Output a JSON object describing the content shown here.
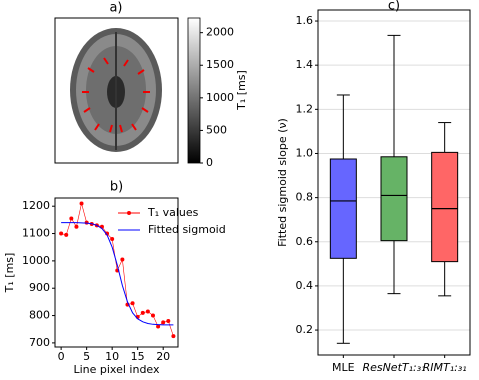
{
  "chart_data": [
    {
      "type": "image",
      "title": "a)",
      "colorbar_label": "T₁ [ms]",
      "clim": [
        0,
        2225
      ],
      "cticks": [
        0,
        500,
        1000,
        1500,
        2000
      ]
    },
    {
      "type": "line",
      "title": "b)",
      "x_label": "Line pixel index",
      "y_label": "T₁ [ms]",
      "x": [
        0,
        1,
        2,
        3,
        4,
        5,
        6,
        7,
        8,
        9,
        10,
        11,
        12,
        13,
        14,
        15,
        16,
        17,
        18,
        19,
        20,
        21,
        22
      ],
      "xlim": [
        -1.2,
        22.9
      ],
      "xticks": [
        0,
        5,
        10,
        15,
        20
      ],
      "ylim": [
        685,
        1230
      ],
      "yticks": [
        700,
        800,
        900,
        1000,
        1100,
        1200
      ],
      "legend": "upper right",
      "series": [
        {
          "name": "T₁ values",
          "color": "#ff0000",
          "marker": true,
          "values": [
            1100,
            1095,
            1155,
            1125,
            1210,
            1140,
            1135,
            1130,
            1125,
            1100,
            1080,
            965,
            1005,
            840,
            845,
            795,
            810,
            815,
            800,
            760,
            775,
            780,
            725
          ]
        },
        {
          "name": "Fitted sigmoid",
          "color": "#0000ff",
          "marker": false,
          "values": [
            1140,
            1140,
            1140,
            1140,
            1139,
            1138,
            1136,
            1130,
            1118,
            1095,
            1050,
            985,
            910,
            850,
            810,
            788,
            777,
            771,
            768,
            767,
            766,
            766,
            766
          ]
        }
      ]
    },
    {
      "type": "box",
      "title": "c)",
      "y_label": "Fitted sigmoid slope (ν)",
      "categories": [
        "MLE",
        "ResNetT₁:₃₁",
        "RIMT₁:₃₁"
      ],
      "ylim": [
        0.087,
        1.65
      ],
      "yticks": [
        0.2,
        0.4,
        0.6,
        0.8,
        {
          "value": 1.0,
          "label": "1.0"
        },
        1.2,
        1.4,
        1.6
      ],
      "grid": true,
      "boxes": [
        {
          "low": 0.14,
          "q1": 0.525,
          "median": 0.785,
          "q3": 0.975,
          "high": 1.265,
          "color": "#6666ff"
        },
        {
          "low": 0.365,
          "q1": 0.605,
          "median": 0.81,
          "q3": 0.985,
          "high": 1.535,
          "color": "#66b366"
        },
        {
          "low": 0.355,
          "q1": 0.51,
          "median": 0.75,
          "q3": 1.005,
          "high": 1.14,
          "color": "#ff6666"
        }
      ]
    }
  ]
}
